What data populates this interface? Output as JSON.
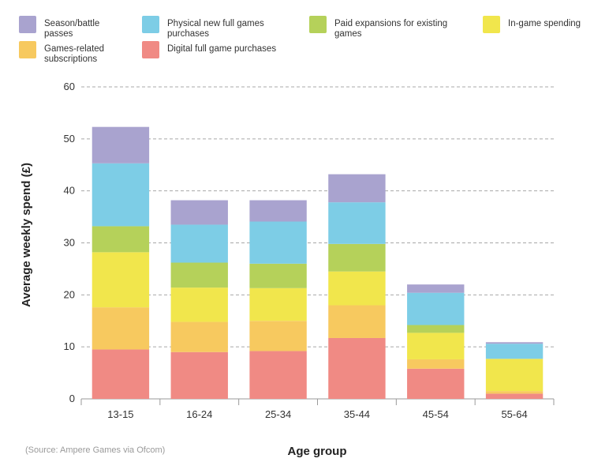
{
  "chart_data": {
    "type": "bar",
    "stacked": true,
    "xlabel": "Age group",
    "ylabel": "Average weekly spend (£)",
    "ylim": [
      0,
      60
    ],
    "yticks": [
      0,
      10,
      20,
      30,
      40,
      50,
      60
    ],
    "grid": true,
    "legend_position": "top",
    "categories": [
      "13-15",
      "16-24",
      "25-34",
      "35-44",
      "45-54",
      "55-64"
    ],
    "series": [
      {
        "name": "Digital full game purchases",
        "color": "#f08a84",
        "values": [
          9.5,
          9.0,
          9.2,
          11.7,
          5.8,
          1.0
        ]
      },
      {
        "name": "Games-related subscriptions",
        "color": "#f7c95f",
        "values": [
          8.1,
          5.8,
          5.8,
          6.3,
          1.8,
          0.5
        ]
      },
      {
        "name": "In-game spending",
        "color": "#f1e64c",
        "values": [
          10.6,
          6.6,
          6.3,
          6.5,
          5.1,
          6.2
        ]
      },
      {
        "name": "Paid expansions for existing games",
        "color": "#b5d15a",
        "values": [
          5.0,
          4.8,
          4.7,
          5.3,
          1.5,
          0.0
        ]
      },
      {
        "name": "Physical new full games purchases",
        "color": "#7dcde6",
        "values": [
          12.1,
          7.3,
          8.1,
          8.0,
          6.2,
          2.9
        ]
      },
      {
        "name": "Season/battle passes",
        "color": "#a9a3cf",
        "values": [
          7.0,
          4.7,
          4.1,
          5.4,
          1.6,
          0.3
        ]
      }
    ],
    "legend_order": [
      "Season/battle passes",
      "Physical new full games purchases",
      "Paid expansions for existing games",
      "In-game spending",
      "Games-related subscriptions",
      "Digital full game purchases"
    ]
  },
  "source": "(Source: Ampere Games via Ofcom)"
}
